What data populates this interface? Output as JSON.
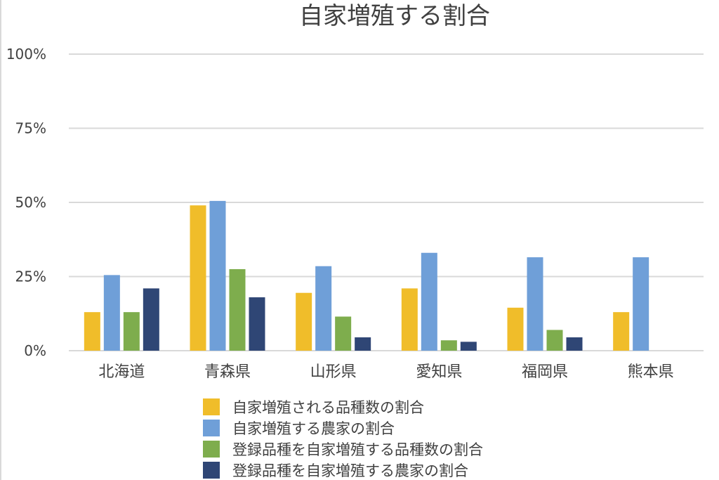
{
  "chart_data": {
    "type": "bar",
    "title": "自家増殖する割合",
    "xlabel": "",
    "ylabel": "",
    "ylim": [
      0,
      100
    ],
    "yticks": [
      "0%",
      "25%",
      "50%",
      "75%",
      "100%"
    ],
    "ytick_values": [
      0,
      25,
      50,
      75,
      100
    ],
    "grid": true,
    "legend_position": "bottom",
    "categories": [
      "北海道",
      "青森県",
      "山形県",
      "愛知県",
      "福岡県",
      "熊本県"
    ],
    "series": [
      {
        "name": "自家増殖される品種数の割合",
        "color": "#f0bd2a",
        "values": [
          13,
          49,
          19.5,
          21,
          14.5,
          13
        ]
      },
      {
        "name": "自家増殖する農家の割合",
        "color": "#6f9fd8",
        "values": [
          25.5,
          50.5,
          28.5,
          33,
          31.5,
          31.5
        ]
      },
      {
        "name": "登録品種を自家増殖する品種数の割合",
        "color": "#7ead4d",
        "values": [
          13,
          27.5,
          11.5,
          3.5,
          7,
          0
        ]
      },
      {
        "name": "登録品種を自家増殖する農家の割合",
        "color": "#2f4675",
        "values": [
          21,
          18,
          4.5,
          3,
          4.5,
          0
        ]
      }
    ]
  },
  "colors": {
    "grid": "#d9d9d9",
    "text": "#404040"
  }
}
